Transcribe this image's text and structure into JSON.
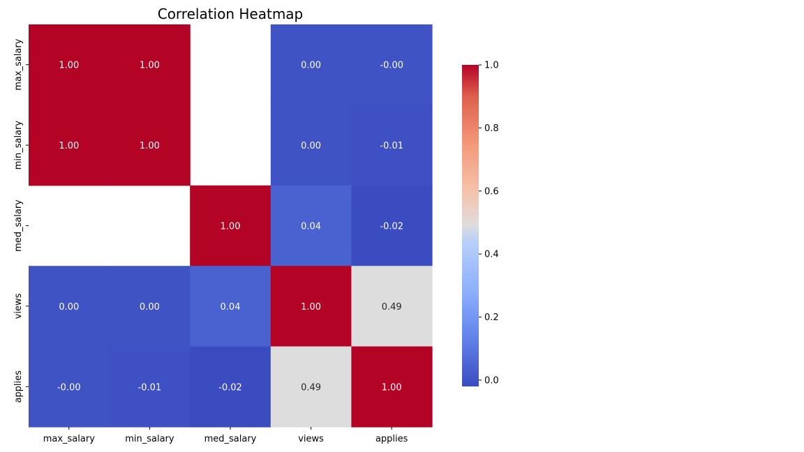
{
  "chart_data": {
    "type": "heatmap",
    "title": "Correlation Heatmap",
    "xlabel": "",
    "ylabel": "",
    "columns": [
      "max_salary",
      "min_salary",
      "med_salary",
      "views",
      "applies"
    ],
    "rows": [
      "max_salary",
      "min_salary",
      "med_salary",
      "views",
      "applies"
    ],
    "values": [
      [
        1.0,
        1.0,
        null,
        0.0,
        -0.0
      ],
      [
        1.0,
        1.0,
        null,
        0.0,
        -0.01
      ],
      [
        null,
        null,
        1.0,
        0.04,
        -0.02
      ],
      [
        0.0,
        0.0,
        0.04,
        1.0,
        0.49
      ],
      [
        -0.0,
        -0.01,
        -0.02,
        0.49,
        1.0
      ]
    ],
    "cell_labels": [
      [
        "1.00",
        "1.00",
        "",
        "0.00",
        "-0.00"
      ],
      [
        "1.00",
        "1.00",
        "",
        "0.00",
        "-0.01"
      ],
      [
        "",
        "",
        "1.00",
        "0.04",
        "-0.02"
      ],
      [
        "0.00",
        "0.00",
        "0.04",
        "1.00",
        "0.49"
      ],
      [
        "-0.00",
        "-0.01",
        "-0.02",
        "0.49",
        "1.00"
      ]
    ],
    "colormap": "coolwarm",
    "colorbar": {
      "range": [
        -0.02,
        1.0
      ],
      "ticks": [
        0.0,
        0.2,
        0.4,
        0.6,
        0.8,
        1.0
      ],
      "tick_labels": [
        "0.0",
        "0.2",
        "0.4",
        "0.6",
        "0.8",
        "1.0"
      ]
    },
    "colors": {
      "low": "#3b4cc0",
      "mid": "#dddddd",
      "high": "#b40426"
    }
  }
}
